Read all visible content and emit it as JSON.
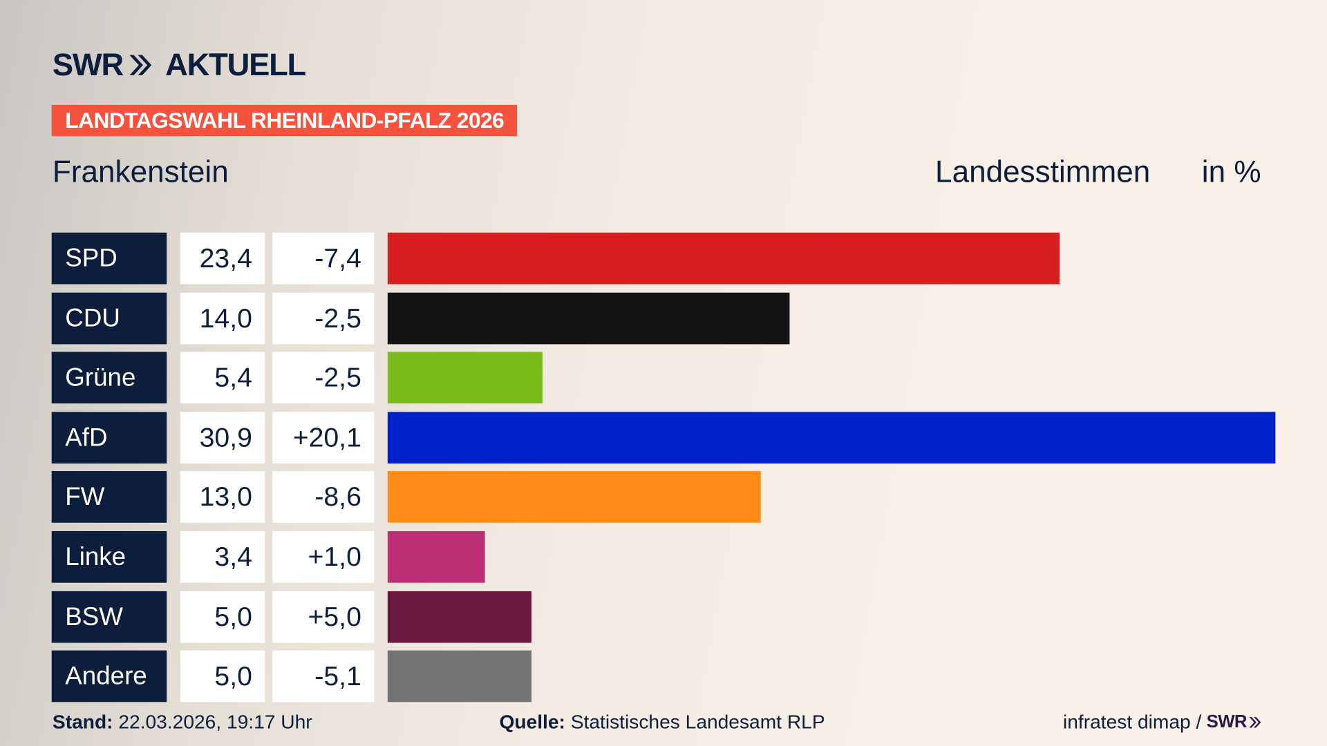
{
  "header": {
    "logo_text": "SWR» AKTUELL",
    "tag": "LANDTAGSWAHL RHEINLAND-PFALZ 2026",
    "subtitle": "Frankenstein",
    "measure": "Landesstimmen",
    "unit": "in %"
  },
  "chart_data": {
    "type": "bar",
    "orientation": "horizontal",
    "title": "Frankenstein",
    "categories": [
      "SPD",
      "CDU",
      "Grüne",
      "AfD",
      "FW",
      "Linke",
      "BSW",
      "Andere"
    ],
    "values": [
      23.4,
      14.0,
      5.4,
      30.9,
      13.0,
      3.4,
      5.0,
      5.0
    ],
    "value_labels": [
      "23,4",
      "14,0",
      "5,4",
      "30,9",
      "13,0",
      "3,4",
      "5,0",
      "5,0"
    ],
    "change_labels": [
      "-7,4",
      "-2,5",
      "-2,5",
      "+20,1",
      "-8,6",
      "+1,0",
      "+5,0",
      "-5,1"
    ],
    "changes": [
      -7.4,
      -2.5,
      -2.5,
      20.1,
      -8.6,
      1.0,
      5.0,
      -5.1
    ],
    "colors": [
      "#d71f20",
      "#141414",
      "#79bd1c",
      "#0021c8",
      "#ff8c19",
      "#bc2f74",
      "#6a1940",
      "#737373"
    ],
    "xlim": [
      0,
      32
    ],
    "grid": false
  },
  "footer": {
    "stand_label": "Stand:",
    "stand_value": "22.03.2026, 19:17 Uhr",
    "source_label": "Quelle:",
    "source_value": "Statistisches Landesamt RLP",
    "credit": "infratest dimap /",
    "credit_logo": "SWR»"
  }
}
